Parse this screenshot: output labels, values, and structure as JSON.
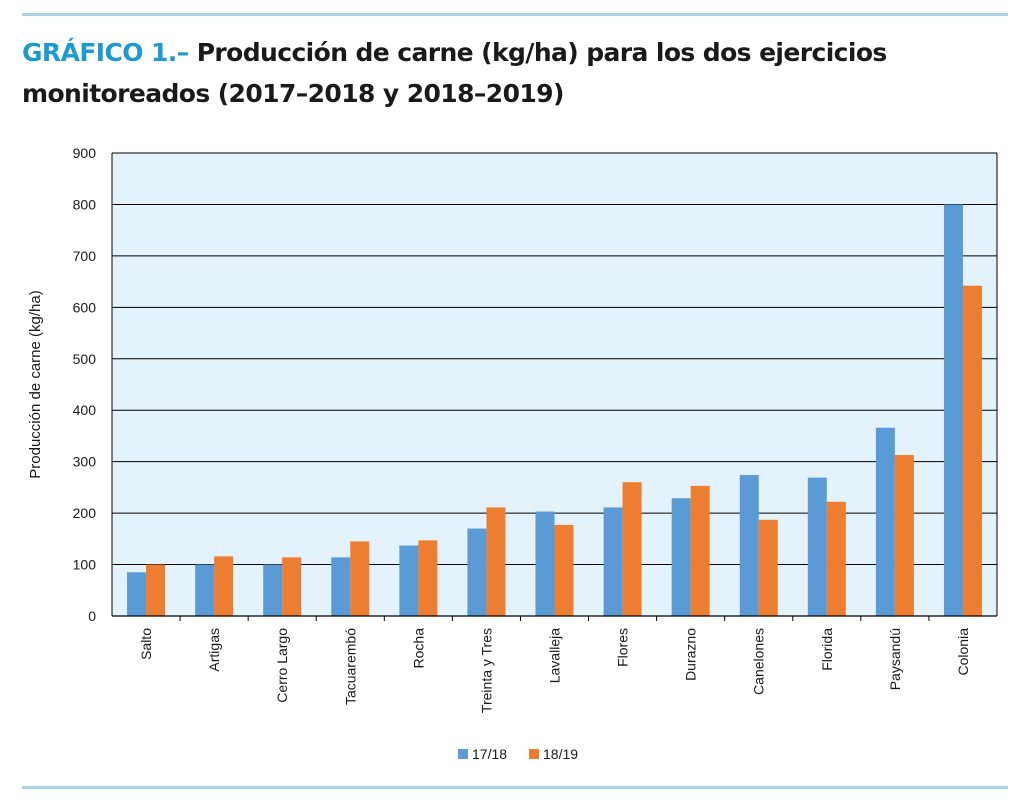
{
  "heading": {
    "prefix": "GRÁFICO 1.–",
    "line1": "Producción de carne (kg/ha) para los dos ejercicios",
    "line2": "monitoreados (2017–2018 y 2018–2019)"
  },
  "colors": {
    "plot_background": "#e4f3fb",
    "series_17_18": "#5b9bd5",
    "series_18_19": "#ed7d31",
    "gridline": "#000000",
    "accent": "#1c9bd1",
    "rule": "#a9d4e6"
  },
  "chart_data": {
    "type": "bar",
    "title": "",
    "xlabel": "",
    "ylabel": "Producción de carne (kg/ha)",
    "ylim": [
      0,
      900
    ],
    "yticks": [
      0,
      100,
      200,
      300,
      400,
      500,
      600,
      700,
      800,
      900
    ],
    "grid": true,
    "legend_position": "bottom",
    "categories": [
      "Salto",
      "Artigas",
      "Cerro Largo",
      "Tacuarembó",
      "Rocha",
      "Treinta y Tres",
      "Lavalleja",
      "Flores",
      "Durazno",
      "Canelones",
      "Florida",
      "Paysandú",
      "Colonia"
    ],
    "series": [
      {
        "name": "17/18",
        "values": [
          85,
          100,
          100,
          114,
          137,
          170,
          203,
          211,
          229,
          274,
          269,
          366,
          800
        ]
      },
      {
        "name": "18/19",
        "values": [
          100,
          116,
          114,
          145,
          147,
          211,
          177,
          260,
          253,
          187,
          222,
          313,
          642
        ]
      }
    ]
  }
}
